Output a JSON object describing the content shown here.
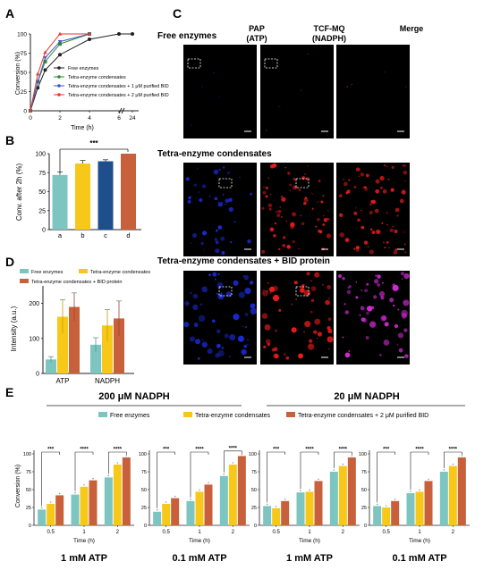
{
  "panel_labels": {
    "A": "A",
    "B": "B",
    "C": "C",
    "D": "D",
    "E": "E"
  },
  "colors": {
    "teal": "#7cc5c1",
    "yellow": "#f7c81a",
    "navy": "#1f4e8c",
    "orange": "#c8613b",
    "black": "#222222",
    "green": "#2f8a2f",
    "blue": "#3f57c7",
    "red": "#e53a2c",
    "mic_blue": "#1b2bd6",
    "mic_red": "#ee1b1b",
    "mic_magenta": "#d02ad4"
  },
  "chart_data": [
    {
      "id": "A",
      "type": "line",
      "xlabel": "Time (h)",
      "ylabel": "Conversion (%)",
      "xticks": [
        "0",
        "2",
        "4",
        "6",
        "24"
      ],
      "yticks": [
        "0",
        "25",
        "50",
        "75",
        "100"
      ],
      "ylim": [
        0,
        100
      ],
      "series": [
        {
          "name": "Free enzymes",
          "color": "#222222",
          "x": [
            0,
            0.5,
            1,
            2,
            4,
            6,
            24
          ],
          "y": [
            0,
            30,
            53,
            73,
            93,
            100,
            100
          ]
        },
        {
          "name": "Tetra-enzyme condensates",
          "color": "#2f8a2f",
          "x": [
            0,
            0.5,
            1,
            2,
            4
          ],
          "y": [
            0,
            38,
            64,
            87,
            100
          ]
        },
        {
          "name": "Tetra-enzyme condensates + 1 μM purified BID",
          "color": "#3f57c7",
          "x": [
            0,
            0.5,
            1,
            2,
            4
          ],
          "y": [
            0,
            38,
            69,
            90,
            100
          ]
        },
        {
          "name": "Tetra-enzyme condensates + 2 μM purified BID",
          "color": "#e53a2c",
          "x": [
            0,
            0.5,
            1,
            2,
            4
          ],
          "y": [
            0,
            48,
            76,
            100,
            100
          ]
        }
      ]
    },
    {
      "id": "B",
      "type": "bar",
      "ylabel": "Conv. after 2h (%)",
      "categories": [
        "a",
        "b",
        "c",
        "d"
      ],
      "values": [
        72,
        87,
        90,
        100
      ],
      "errors": [
        4,
        4,
        2,
        0
      ],
      "colors": [
        "#7cc5c1",
        "#f7c81a",
        "#1f4e8c",
        "#c8613b"
      ],
      "yticks": [
        "0",
        "25",
        "50",
        "75",
        "100"
      ],
      "ylim": [
        0,
        100
      ],
      "significance": "***"
    },
    {
      "id": "D",
      "type": "bar",
      "ylabel": "Intensity (a.u.)",
      "categories": [
        "ATP",
        "NADPH"
      ],
      "yticks": [
        "0",
        "100",
        "200"
      ],
      "ylim": [
        0,
        250
      ],
      "series": [
        {
          "name": "Free enzymes",
          "color": "#7cc5c1",
          "values": [
            40,
            82
          ],
          "errors": [
            8,
            20
          ]
        },
        {
          "name": "Tetra-enzyme condensates",
          "color": "#f7c81a",
          "values": [
            162,
            137
          ],
          "errors": [
            48,
            45
          ]
        },
        {
          "name": "Tetra-enzyme condensates + BID protein",
          "color": "#c8613b",
          "values": [
            190,
            157
          ],
          "errors": [
            40,
            50
          ]
        }
      ]
    },
    {
      "id": "E",
      "type": "bar",
      "ylabel": "Conversion (%)",
      "xlabel": "Time (h)",
      "yticks": [
        "0",
        "25",
        "50",
        "75",
        "100"
      ],
      "ylim": [
        0,
        100
      ],
      "legend": [
        "Free enzymes",
        "Tetra-enzyme condensates",
        "Tetra-enzyme condensates + 2 μM purified BID"
      ],
      "group_headers": [
        "200 μM NADPH",
        "20 μM NADPH"
      ],
      "subplots": [
        {
          "label": "1 mM ATP",
          "categories": [
            "0.5",
            "1",
            "2"
          ],
          "values": [
            [
              22,
              30,
              42
            ],
            [
              43,
              54,
              63
            ],
            [
              67,
              85,
              95
            ]
          ],
          "sig": [
            "***",
            "****",
            "****"
          ]
        },
        {
          "label": "0.1 mM ATP",
          "categories": [
            "0.5",
            "1",
            "2"
          ],
          "values": [
            [
              19,
              30,
              38
            ],
            [
              34,
              47,
              57
            ],
            [
              69,
              85,
              97
            ]
          ],
          "sig": [
            "***",
            "****",
            "****"
          ]
        },
        {
          "label": "1 mM ATP",
          "categories": [
            "0.5",
            "1",
            "2"
          ],
          "values": [
            [
              27,
              24,
              34
            ],
            [
              46,
              47,
              62
            ],
            [
              75,
              83,
              95
            ]
          ],
          "sig": [
            "***",
            "****",
            "****"
          ]
        },
        {
          "label": "0.1 mM ATP",
          "categories": [
            "0.5",
            "1",
            "2"
          ],
          "values": [
            [
              27,
              25,
              34
            ],
            [
              45,
              47,
              62
            ],
            [
              75,
              83,
              95
            ]
          ],
          "sig": [
            "***",
            "****",
            "****"
          ]
        }
      ]
    }
  ],
  "panel_c": {
    "column_headers": [
      {
        "line1": "PAP",
        "line2": "(ATP)"
      },
      {
        "line1": "TCF-MQ",
        "line2": "(NADPH)"
      },
      {
        "line1": "Merge",
        "line2": ""
      }
    ],
    "rows": [
      "Free enzymes",
      "Tetra-enzyme condensates",
      "Tetra-enzyme condensates + BID protein"
    ]
  }
}
